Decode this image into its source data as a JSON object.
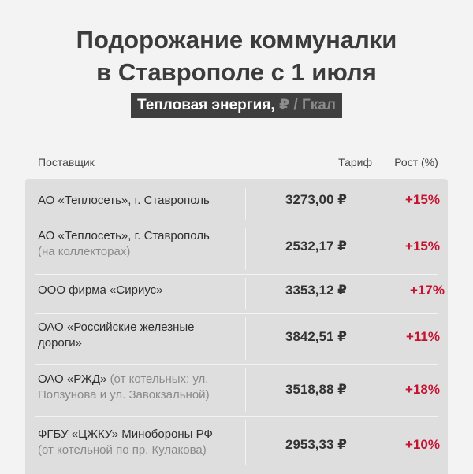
{
  "title": {
    "line1": "Подорожание коммуналки",
    "line2": "в Ставрополе с 1 июля"
  },
  "subtitle": {
    "label": "Тепловая энергия, ",
    "unit": "₽ / Гкал"
  },
  "columns": {
    "supplier": "Поставщик",
    "tariff": "Тариф",
    "growth": "Рост (%)"
  },
  "rows": [
    {
      "name": "АО «Теплосеть», г. Ставрополь",
      "note": "",
      "tariff": "3273,00 ₽",
      "growth": "+15%"
    },
    {
      "name": "АО «Теплосеть», г. Ставрополь",
      "note": "(на коллекторах)",
      "tariff": "2532,17 ₽",
      "growth": "+15%"
    },
    {
      "name": "ООО фирма «Сириус»",
      "note": "",
      "tariff": "3353,12 ₽",
      "growth": "+17%"
    },
    {
      "name": "ОАО «Российские железные дороги»",
      "note": "",
      "tariff": "3842,51 ₽",
      "growth": "+11%"
    },
    {
      "name": "ОАО «РЖД»",
      "note": "(от котельных: ул. Ползунова и ул. Завокзальной)",
      "tariff": "3518,88 ₽",
      "growth": "+18%"
    },
    {
      "name": "ФГБУ «ЦЖКУ» Минобороны РФ",
      "note": "(от котельной по пр. Кулакова)",
      "tariff": "2953,33 ₽",
      "growth": "+10%"
    }
  ],
  "colors": {
    "background": "#f3f3f3",
    "table_bg": "#dedede",
    "badge_bg": "#3f3f3f",
    "growth_red": "#c41230"
  }
}
